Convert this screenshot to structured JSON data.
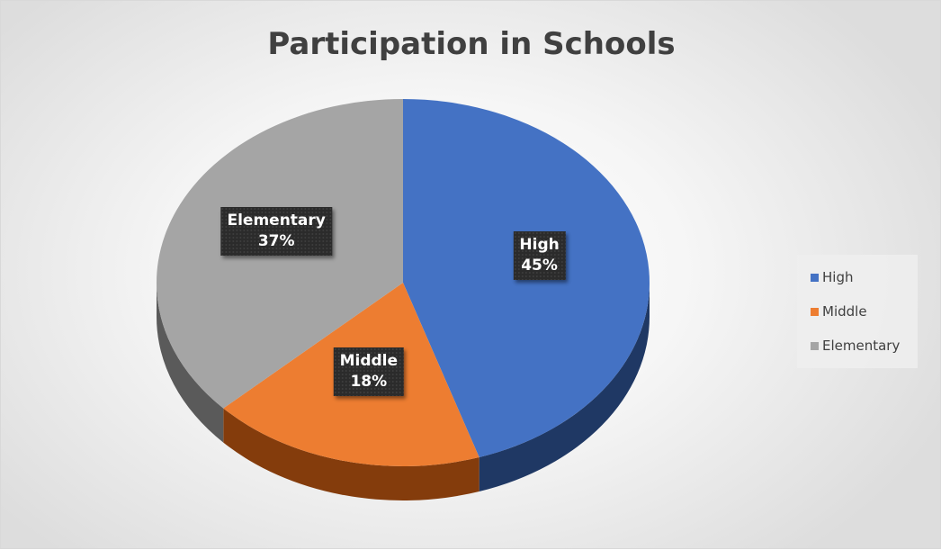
{
  "chart_data": {
    "type": "pie",
    "title": "Participation in Schools",
    "categories": [
      "High",
      "Middle",
      "Elementary"
    ],
    "values": [
      45,
      18,
      37
    ],
    "unit": "%",
    "labels": [
      "45%",
      "18%",
      "37%"
    ],
    "colors": [
      "#4472c4",
      "#ed7d31",
      "#a5a5a5"
    ],
    "side_colors": [
      "#1f3864",
      "#843c0c",
      "#5a5a5a"
    ],
    "style": "3d",
    "legend_position": "right",
    "data_labels": "category-and-percent"
  }
}
